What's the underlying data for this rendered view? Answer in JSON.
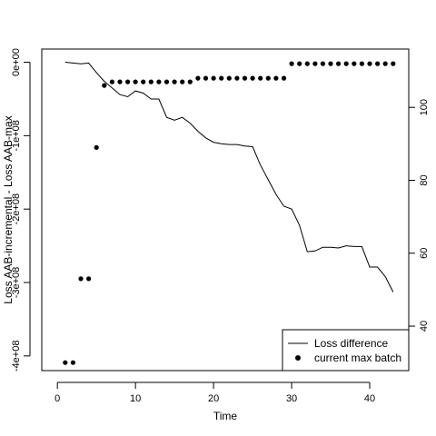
{
  "chart_data": {
    "type": "line",
    "xlabel": "Time",
    "ylabel": "Loss AAB-incremental - Loss AAB-max",
    "xlim": [
      -2,
      45
    ],
    "ylim": [
      -420000000,
      18000000
    ],
    "ylim_right": [
      27.8,
      116
    ],
    "x_ticks": [
      0,
      10,
      20,
      30,
      40
    ],
    "x_tick_labels": [
      "0",
      "10",
      "20",
      "30",
      "40"
    ],
    "y_ticks": [
      0,
      -100000000,
      -200000000,
      -300000000,
      -400000000
    ],
    "y_tick_labels": [
      "0e+00",
      "-1e+08",
      "-2e+08",
      "-3e+08",
      "-4e+08"
    ],
    "y2_ticks": [
      40,
      60,
      80,
      100
    ],
    "y2_tick_labels": [
      "40",
      "60",
      "80",
      "100"
    ],
    "legend_position": "bottom-right",
    "series": [
      {
        "name": "Loss difference",
        "style": "line",
        "axis": "left",
        "x": [
          1,
          2,
          3,
          4,
          5,
          6,
          7,
          8,
          9,
          10,
          11,
          12,
          13,
          14,
          15,
          16,
          17,
          18,
          19,
          20,
          21,
          22,
          23,
          24,
          25,
          26,
          27,
          28,
          29,
          30,
          31,
          32,
          33,
          34,
          35,
          36,
          37,
          38,
          39,
          40,
          41,
          42,
          43
        ],
        "values": [
          0,
          -1000000,
          -2000000,
          -1000000,
          -14000000,
          -26000000,
          -35000000,
          -44000000,
          -47000000,
          -39000000,
          -42000000,
          -50000000,
          -50000000,
          -75000000,
          -79000000,
          -75000000,
          -83000000,
          -94000000,
          -103000000,
          -109000000,
          -111000000,
          -112000000,
          -112000000,
          -114000000,
          -115000000,
          -140000000,
          -160000000,
          -180000000,
          -196000000,
          -200000000,
          -222000000,
          -258000000,
          -257000000,
          -252000000,
          -252000000,
          -253000000,
          -250000000,
          -251000000,
          -251000000,
          -279000000,
          -279000000,
          -292000000,
          -313000000
        ]
      },
      {
        "name": "current max batch",
        "style": "points",
        "axis": "right",
        "x": [
          1,
          2,
          3,
          4,
          5,
          6,
          7,
          8,
          9,
          10,
          11,
          12,
          13,
          14,
          15,
          16,
          17,
          18,
          19,
          20,
          21,
          22,
          23,
          24,
          25,
          26,
          27,
          28,
          29,
          30,
          31,
          32,
          33,
          34,
          35,
          36,
          37,
          38,
          39,
          40,
          41,
          42,
          43
        ],
        "values": [
          30,
          30,
          53,
          53,
          89,
          106,
          107,
          107,
          107,
          107,
          107,
          107,
          107,
          107,
          107,
          107,
          107,
          108,
          108,
          108,
          108,
          108,
          108,
          108,
          108,
          108,
          108,
          108,
          108,
          112,
          112,
          112,
          112,
          112,
          112,
          112,
          112,
          112,
          112,
          112,
          112,
          112,
          112
        ]
      }
    ]
  }
}
